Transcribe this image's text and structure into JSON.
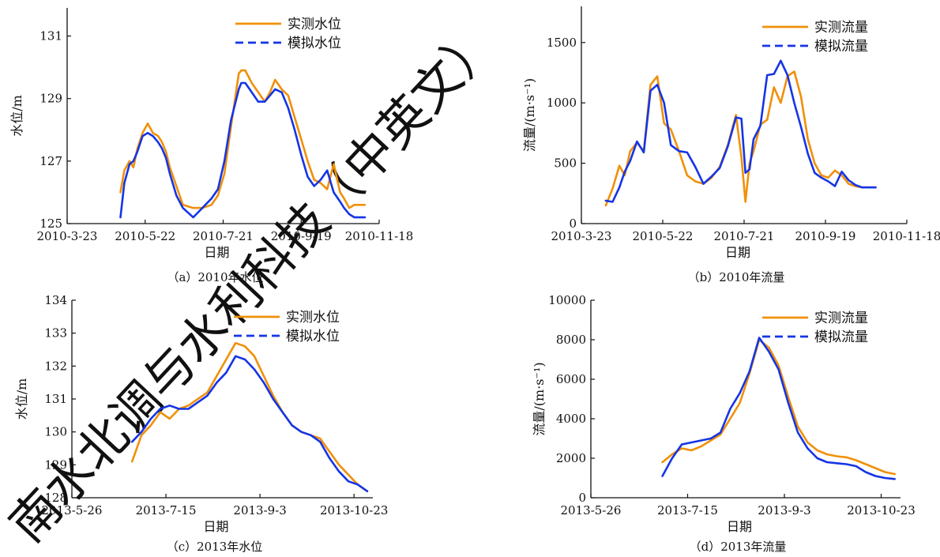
{
  "watermark": "南水北调与水利科技（中英文）",
  "colors": {
    "observed": "#F0900A",
    "simulated": "#1535E6"
  },
  "chart_data": [
    {
      "id": "a",
      "type": "line",
      "caption": "（a）2010年水位",
      "xlabel": "日期",
      "ylabel": "水位/m",
      "x_type": "date",
      "xlim": [
        "2010-03-23",
        "2010-11-18"
      ],
      "xticks": [
        "2010-03-23",
        "2010-05-22",
        "2010-07-21",
        "2010-09-19",
        "2010-11-18"
      ],
      "xtick_labels": [
        "2010-3-23",
        "2010-5-22",
        "2010-7-21",
        "2010-9-19",
        "2010-11-18"
      ],
      "ylim": [
        125,
        131.9
      ],
      "yticks": [
        125,
        127,
        129,
        131
      ],
      "ytick_labels": [
        "125",
        "127",
        "129",
        "131"
      ],
      "legend_position": "top-right",
      "series": [
        {
          "name": "实测水位",
          "style": "solid",
          "color_key": "observed",
          "x": [
            "2010-05-03",
            "2010-05-06",
            "2010-05-10",
            "2010-05-13",
            "2010-05-16",
            "2010-05-20",
            "2010-05-24",
            "2010-05-28",
            "2010-06-01",
            "2010-06-04",
            "2010-06-07",
            "2010-06-10",
            "2010-06-15",
            "2010-06-20",
            "2010-06-28",
            "2010-07-05",
            "2010-07-12",
            "2010-07-17",
            "2010-07-22",
            "2010-07-27",
            "2010-08-02",
            "2010-08-04",
            "2010-08-07",
            "2010-08-12",
            "2010-08-17",
            "2010-08-22",
            "2010-08-26",
            "2010-08-30",
            "2010-09-04",
            "2010-09-09",
            "2010-09-14",
            "2010-09-19",
            "2010-09-24",
            "2010-09-29",
            "2010-10-04",
            "2010-10-09",
            "2010-10-14",
            "2010-10-19",
            "2010-10-22",
            "2010-10-26",
            "2010-10-30",
            "2010-11-03",
            "2010-11-07"
          ],
          "y": [
            126.0,
            126.7,
            127.0,
            126.8,
            127.4,
            127.9,
            128.2,
            127.9,
            127.8,
            127.6,
            127.3,
            126.8,
            126.2,
            125.6,
            125.5,
            125.5,
            125.6,
            125.9,
            126.6,
            128.1,
            129.8,
            129.9,
            129.9,
            129.5,
            129.2,
            128.9,
            129.2,
            129.6,
            129.3,
            129.1,
            128.4,
            127.7,
            127.0,
            126.4,
            126.3,
            126.1,
            126.9,
            126.0,
            125.8,
            125.5,
            125.6,
            125.6,
            125.6
          ]
        },
        {
          "name": "模拟水位",
          "style": "dashed",
          "color_key": "simulated",
          "x": [
            "2010-05-03",
            "2010-05-06",
            "2010-05-10",
            "2010-05-13",
            "2010-05-16",
            "2010-05-20",
            "2010-05-24",
            "2010-05-28",
            "2010-06-01",
            "2010-06-04",
            "2010-06-07",
            "2010-06-10",
            "2010-06-15",
            "2010-06-20",
            "2010-06-28",
            "2010-07-05",
            "2010-07-12",
            "2010-07-17",
            "2010-07-22",
            "2010-07-27",
            "2010-08-02",
            "2010-08-04",
            "2010-08-07",
            "2010-08-12",
            "2010-08-17",
            "2010-08-22",
            "2010-08-26",
            "2010-08-30",
            "2010-09-04",
            "2010-09-09",
            "2010-09-14",
            "2010-09-19",
            "2010-09-24",
            "2010-09-29",
            "2010-10-04",
            "2010-10-09",
            "2010-10-14",
            "2010-10-19",
            "2010-10-22",
            "2010-10-26",
            "2010-10-30",
            "2010-11-03",
            "2010-11-07"
          ],
          "y": [
            125.2,
            126.3,
            126.9,
            127.0,
            127.3,
            127.8,
            127.9,
            127.8,
            127.6,
            127.4,
            127.1,
            126.6,
            125.9,
            125.5,
            125.2,
            125.5,
            125.8,
            126.1,
            127.0,
            128.3,
            129.3,
            129.5,
            129.5,
            129.2,
            128.9,
            128.9,
            129.1,
            129.3,
            129.2,
            128.7,
            128.0,
            127.2,
            126.5,
            126.2,
            126.4,
            126.7,
            126.0,
            125.7,
            125.5,
            125.3,
            125.2,
            125.2,
            125.2
          ]
        }
      ]
    },
    {
      "id": "b",
      "type": "line",
      "caption": "（b）2010年流量",
      "xlabel": "日期",
      "ylabel": "流量/(m·s⁻¹)",
      "x_type": "date",
      "xlim": [
        "2010-03-23",
        "2010-11-18"
      ],
      "xticks": [
        "2010-03-23",
        "2010-05-22",
        "2010-07-21",
        "2010-09-19",
        "2010-11-18"
      ],
      "xtick_labels": [
        "2010-3-23",
        "2010-5-22",
        "2010-7-21",
        "2010-9-19",
        "2010-11-18"
      ],
      "ylim": [
        0,
        1800
      ],
      "yticks": [
        0,
        500,
        1000,
        1500
      ],
      "ytick_labels": [
        "0",
        "500",
        "1000",
        "1500"
      ],
      "legend_position": "top-right",
      "series": [
        {
          "name": "实测流量",
          "style": "solid",
          "color_key": "observed",
          "x": [
            "2010-04-10",
            "2010-04-15",
            "2010-04-20",
            "2010-04-24",
            "2010-04-28",
            "2010-05-03",
            "2010-05-08",
            "2010-05-13",
            "2010-05-18",
            "2010-05-23",
            "2010-05-28",
            "2010-06-03",
            "2010-06-09",
            "2010-06-15",
            "2010-06-21",
            "2010-06-27",
            "2010-07-03",
            "2010-07-09",
            "2010-07-15",
            "2010-07-19",
            "2010-07-22",
            "2010-07-25",
            "2010-07-28",
            "2010-08-02",
            "2010-08-07",
            "2010-08-12",
            "2010-08-17",
            "2010-08-22",
            "2010-08-27",
            "2010-09-01",
            "2010-09-06",
            "2010-09-11",
            "2010-09-16",
            "2010-09-21",
            "2010-09-26",
            "2010-10-01",
            "2010-10-06",
            "2010-10-11",
            "2010-10-16",
            "2010-10-21",
            "2010-10-26"
          ],
          "y": [
            150,
            290,
            480,
            400,
            600,
            670,
            600,
            1150,
            1220,
            830,
            780,
            600,
            400,
            350,
            330,
            380,
            470,
            650,
            900,
            550,
            180,
            500,
            600,
            820,
            860,
            1130,
            1000,
            1220,
            1260,
            1050,
            700,
            500,
            400,
            380,
            440,
            400,
            330,
            310,
            300,
            300,
            300
          ]
        },
        {
          "name": "模拟流量",
          "style": "dashed",
          "color_key": "simulated",
          "x": [
            "2010-04-10",
            "2010-04-15",
            "2010-04-20",
            "2010-04-24",
            "2010-04-28",
            "2010-05-03",
            "2010-05-08",
            "2010-05-13",
            "2010-05-18",
            "2010-05-23",
            "2010-05-28",
            "2010-06-03",
            "2010-06-09",
            "2010-06-15",
            "2010-06-21",
            "2010-06-27",
            "2010-07-03",
            "2010-07-09",
            "2010-07-15",
            "2010-07-19",
            "2010-07-22",
            "2010-07-25",
            "2010-07-28",
            "2010-08-02",
            "2010-08-07",
            "2010-08-12",
            "2010-08-17",
            "2010-08-22",
            "2010-08-27",
            "2010-09-01",
            "2010-09-06",
            "2010-09-11",
            "2010-09-16",
            "2010-09-21",
            "2010-09-26",
            "2010-10-01",
            "2010-10-06",
            "2010-10-11",
            "2010-10-16",
            "2010-10-21",
            "2010-10-26"
          ],
          "y": [
            190,
            180,
            300,
            430,
            520,
            680,
            590,
            1100,
            1150,
            1000,
            650,
            600,
            590,
            470,
            330,
            390,
            460,
            640,
            880,
            870,
            420,
            450,
            700,
            810,
            1230,
            1240,
            1350,
            1230,
            1000,
            800,
            580,
            420,
            380,
            350,
            310,
            430,
            360,
            320,
            300,
            300,
            300
          ]
        }
      ]
    },
    {
      "id": "c",
      "type": "line",
      "caption": "（c）2013年水位",
      "xlabel": "日期",
      "ylabel": "水位/m",
      "x_type": "date",
      "xlim": [
        "2013-05-26",
        "2013-11-02"
      ],
      "xticks": [
        "2013-05-26",
        "2013-07-15",
        "2013-09-03",
        "2013-10-23"
      ],
      "xtick_labels": [
        "2013-5-26",
        "2013-7-15",
        "2013-9-3",
        "2013-10-23"
      ],
      "ylim": [
        128,
        134
      ],
      "yticks": [
        128,
        129,
        130,
        131,
        132,
        133,
        134
      ],
      "ytick_labels": [
        "128",
        "129",
        "130",
        "131",
        "132",
        "133",
        "134"
      ],
      "legend_position": "top-right",
      "series": [
        {
          "name": "实测水位",
          "style": "solid",
          "color_key": "observed",
          "x": [
            "2013-06-27",
            "2013-07-02",
            "2013-07-07",
            "2013-07-12",
            "2013-07-17",
            "2013-07-22",
            "2013-07-27",
            "2013-08-01",
            "2013-08-06",
            "2013-08-11",
            "2013-08-16",
            "2013-08-21",
            "2013-08-26",
            "2013-08-31",
            "2013-09-05",
            "2013-09-10",
            "2013-09-15",
            "2013-09-20",
            "2013-09-25",
            "2013-09-30",
            "2013-10-05",
            "2013-10-10",
            "2013-10-15",
            "2013-10-20",
            "2013-10-25",
            "2013-10-30"
          ],
          "y": [
            129.1,
            129.9,
            130.2,
            130.6,
            130.4,
            130.7,
            130.8,
            131.0,
            131.2,
            131.7,
            132.2,
            132.7,
            132.6,
            132.3,
            131.7,
            131.1,
            130.6,
            130.2,
            130.0,
            129.9,
            129.8,
            129.4,
            129.0,
            128.7,
            128.4,
            128.2
          ]
        },
        {
          "name": "模拟水位",
          "style": "dashed",
          "color_key": "simulated",
          "x": [
            "2013-06-27",
            "2013-07-02",
            "2013-07-07",
            "2013-07-12",
            "2013-07-17",
            "2013-07-22",
            "2013-07-27",
            "2013-08-01",
            "2013-08-06",
            "2013-08-11",
            "2013-08-16",
            "2013-08-21",
            "2013-08-26",
            "2013-08-31",
            "2013-09-05",
            "2013-09-10",
            "2013-09-15",
            "2013-09-20",
            "2013-09-25",
            "2013-09-30",
            "2013-10-05",
            "2013-10-10",
            "2013-10-15",
            "2013-10-20",
            "2013-10-25",
            "2013-10-30"
          ],
          "y": [
            129.7,
            130.0,
            130.4,
            130.7,
            130.8,
            130.7,
            130.7,
            130.9,
            131.1,
            131.5,
            131.8,
            132.3,
            132.2,
            131.9,
            131.5,
            131.0,
            130.6,
            130.2,
            130.0,
            129.9,
            129.7,
            129.2,
            128.8,
            128.5,
            128.4,
            128.2
          ]
        }
      ]
    },
    {
      "id": "d",
      "type": "line",
      "caption": "（d）2013年流量",
      "xlabel": "日期",
      "ylabel": "流量/(m·s⁻¹)",
      "x_type": "date",
      "xlim": [
        "2013-05-26",
        "2013-11-02"
      ],
      "xticks": [
        "2013-05-26",
        "2013-07-15",
        "2013-09-03",
        "2013-10-23"
      ],
      "xtick_labels": [
        "2013-5-26",
        "2013-7-15",
        "2013-9-3",
        "2013-10-23"
      ],
      "ylim": [
        0,
        10000
      ],
      "yticks": [
        0,
        2000,
        4000,
        6000,
        8000,
        10000
      ],
      "ytick_labels": [
        "0",
        "2000",
        "4000",
        "6000",
        "8000",
        "10000"
      ],
      "legend_position": "top-right",
      "series": [
        {
          "name": "实测流量",
          "style": "solid",
          "color_key": "observed",
          "x": [
            "2013-07-02",
            "2013-07-07",
            "2013-07-12",
            "2013-07-17",
            "2013-07-22",
            "2013-07-27",
            "2013-08-01",
            "2013-08-06",
            "2013-08-11",
            "2013-08-16",
            "2013-08-21",
            "2013-08-26",
            "2013-08-31",
            "2013-09-05",
            "2013-09-10",
            "2013-09-15",
            "2013-09-20",
            "2013-09-25",
            "2013-09-30",
            "2013-10-05",
            "2013-10-10",
            "2013-10-15",
            "2013-10-20",
            "2013-10-25",
            "2013-10-30"
          ],
          "y": [
            1800,
            2200,
            2500,
            2400,
            2600,
            2900,
            3200,
            4000,
            4800,
            6300,
            8000,
            7600,
            6700,
            5100,
            3600,
            2800,
            2400,
            2200,
            2100,
            2050,
            1900,
            1700,
            1500,
            1300,
            1200
          ]
        },
        {
          "name": "模拟流量",
          "style": "dashed",
          "color_key": "simulated",
          "x": [
            "2013-07-02",
            "2013-07-07",
            "2013-07-12",
            "2013-07-17",
            "2013-07-22",
            "2013-07-27",
            "2013-08-01",
            "2013-08-06",
            "2013-08-11",
            "2013-08-16",
            "2013-08-21",
            "2013-08-26",
            "2013-08-31",
            "2013-09-05",
            "2013-09-10",
            "2013-09-15",
            "2013-09-20",
            "2013-09-25",
            "2013-09-30",
            "2013-10-05",
            "2013-10-10",
            "2013-10-15",
            "2013-10-20",
            "2013-10-25",
            "2013-10-30"
          ],
          "y": [
            1100,
            2000,
            2700,
            2800,
            2900,
            3000,
            3300,
            4500,
            5300,
            6400,
            8100,
            7400,
            6500,
            4800,
            3300,
            2500,
            2000,
            1800,
            1750,
            1700,
            1600,
            1300,
            1100,
            1000,
            950
          ]
        }
      ]
    }
  ]
}
